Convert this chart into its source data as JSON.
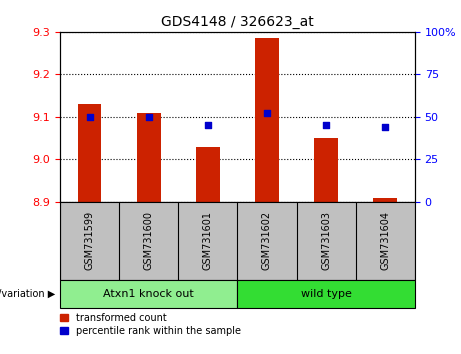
{
  "title": "GDS4148 / 326623_at",
  "samples": [
    "GSM731599",
    "GSM731600",
    "GSM731601",
    "GSM731602",
    "GSM731603",
    "GSM731604"
  ],
  "red_values": [
    9.13,
    9.11,
    9.03,
    9.285,
    9.05,
    8.91
  ],
  "blue_percentiles": [
    50,
    50,
    45,
    52,
    45,
    44
  ],
  "ylim_left": [
    8.9,
    9.3
  ],
  "ylim_right": [
    0,
    100
  ],
  "yticks_left": [
    8.9,
    9.0,
    9.1,
    9.2,
    9.3
  ],
  "yticks_right": [
    0,
    25,
    50,
    75,
    100
  ],
  "ytick_labels_right": [
    "0",
    "25",
    "50",
    "75",
    "100%"
  ],
  "base_value": 8.9,
  "groups": [
    {
      "label": "Atxn1 knock out",
      "indices": [
        0,
        1,
        2
      ],
      "color": "#90EE90"
    },
    {
      "label": "wild type",
      "indices": [
        3,
        4,
        5
      ],
      "color": "#33DD33"
    }
  ],
  "bar_color": "#CC2200",
  "dot_color": "#0000CC",
  "tick_bg_color": "#C0C0C0",
  "plot_bg": "#FFFFFF",
  "legend_red_label": "transformed count",
  "legend_blue_label": "percentile rank within the sample",
  "genotype_label": "genotype/variation"
}
